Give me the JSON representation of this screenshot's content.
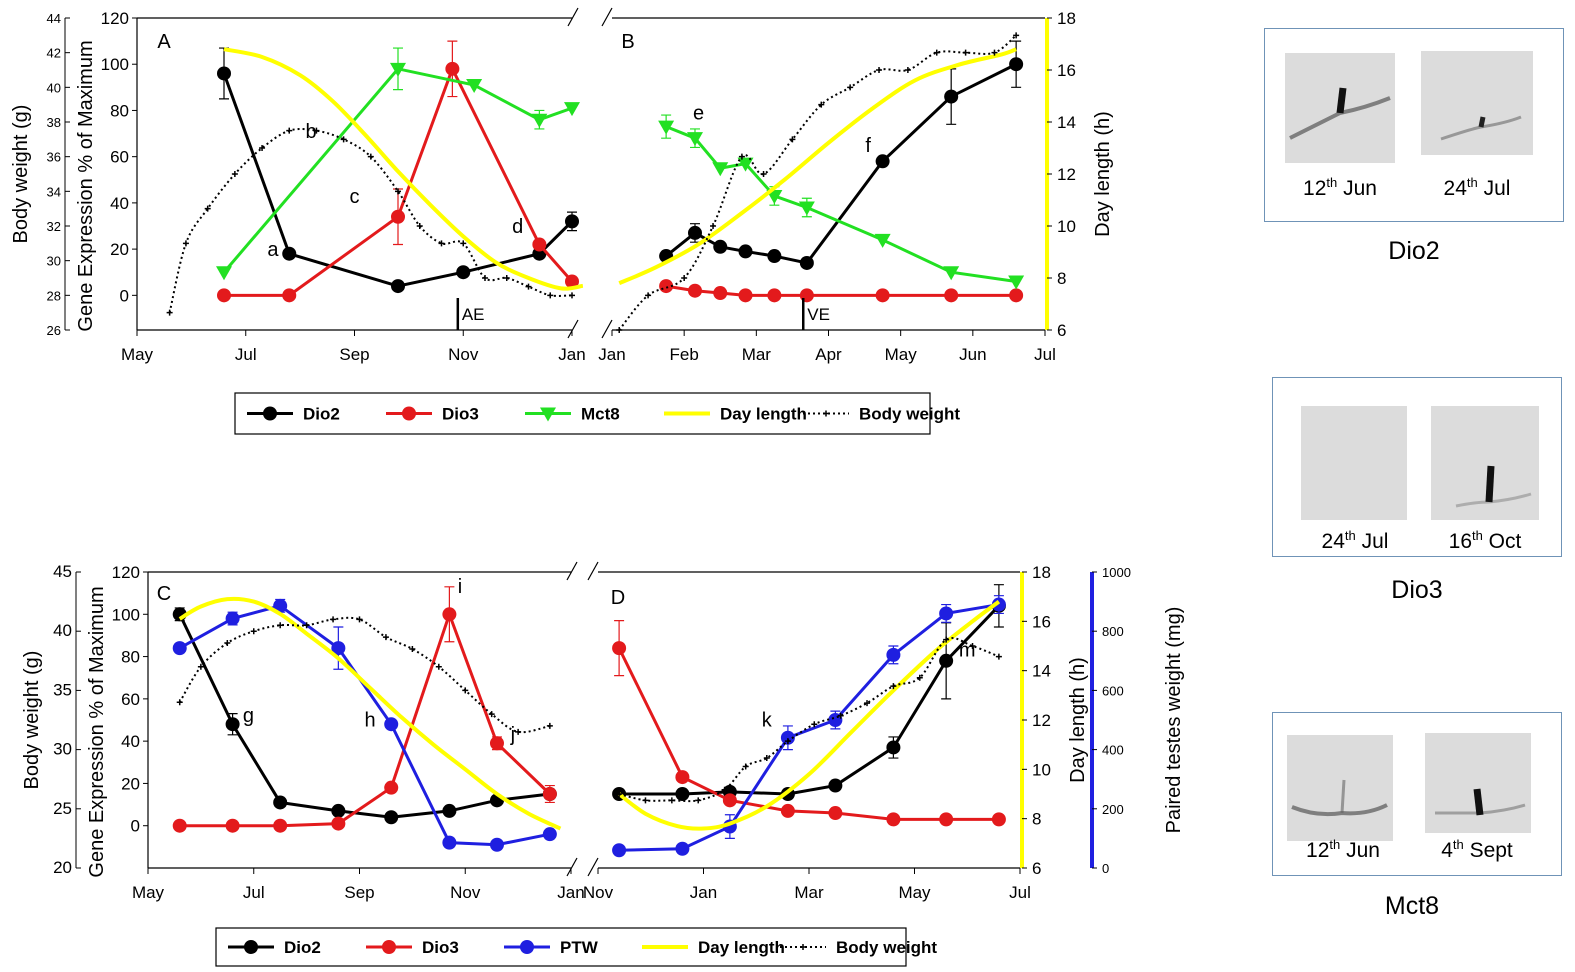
{
  "colors": {
    "dio2": "#000000",
    "dio3": "#e31a1c",
    "mct8": "#22e022",
    "ptw": "#1f1fe0",
    "day_length": "#ffff00",
    "body_weight": "#000000",
    "panel_border": "#6f93b7"
  },
  "legend_top": [
    {
      "key": "dio2",
      "label": "Dio2"
    },
    {
      "key": "dio3",
      "label": "Dio3"
    },
    {
      "key": "mct8",
      "label": "Mct8"
    },
    {
      "key": "day_length",
      "label": "Day length"
    },
    {
      "key": "body_weight",
      "label": "Body weight"
    }
  ],
  "legend_bottom": [
    {
      "key": "dio2",
      "label": "Dio2"
    },
    {
      "key": "dio3",
      "label": "Dio3"
    },
    {
      "key": "ptw",
      "label": "PTW"
    },
    {
      "key": "day_length",
      "label": "Day length"
    },
    {
      "key": "body_weight",
      "label": "Body weight"
    }
  ],
  "chart_data": [
    {
      "panel": "A",
      "type": "line",
      "x_unit": "month",
      "xlim": [
        5,
        13
      ],
      "x_ticks": [
        "May",
        "Jul",
        "Sep",
        "Nov",
        "Jan"
      ],
      "ylabel": "Gene Expression % of Maximum",
      "ylim": [
        -15,
        120
      ],
      "y_ticks": [
        0,
        20,
        40,
        60,
        80,
        100,
        120
      ],
      "y2label": "Body weight (g)",
      "y2lim": [
        26,
        44
      ],
      "y2_ticks": [
        26,
        28,
        30,
        32,
        34,
        36,
        38,
        40,
        42,
        44
      ],
      "series": [
        {
          "name": "Dio2",
          "x": [
            6.6,
            7.8,
            9.8,
            11.0,
            12.4,
            13.0
          ],
          "y": [
            96,
            18,
            4,
            10,
            18,
            32
          ],
          "err": [
            11,
            0,
            0,
            0,
            0,
            4
          ]
        },
        {
          "name": "Dio3",
          "x": [
            6.6,
            7.8,
            9.8,
            10.8,
            12.4,
            13.0
          ],
          "y": [
            0,
            0,
            34,
            98,
            22,
            6
          ],
          "err": [
            0,
            0,
            12,
            12,
            0,
            0
          ]
        },
        {
          "name": "Mct8",
          "x": [
            6.6,
            9.8,
            11.2,
            12.4,
            13.0
          ],
          "y": [
            10,
            98,
            91,
            76,
            81
          ],
          "err": [
            0,
            9,
            0,
            4,
            0
          ]
        },
        {
          "name": "Day length",
          "axis": "day_length",
          "x": [
            6.6,
            7.3,
            8.0,
            8.6,
            9.2,
            9.8,
            10.4,
            11.0,
            11.6,
            12.2,
            12.8,
            13.2
          ],
          "y": [
            16.8,
            16.5,
            15.8,
            14.8,
            13.5,
            12.1,
            10.8,
            9.6,
            8.6,
            8.0,
            7.6,
            7.7
          ]
        },
        {
          "name": "Body weight",
          "axis": "body_weight",
          "x": [
            5.6,
            5.9,
            6.3,
            6.8,
            7.3,
            7.8,
            8.3,
            8.8,
            9.3,
            9.8,
            10.2,
            10.6,
            11.0,
            11.4,
            11.8,
            12.2,
            12.6,
            13.0
          ],
          "y": [
            27,
            31,
            33,
            35,
            36.5,
            37.5,
            37.5,
            37,
            36,
            34,
            32,
            31,
            31,
            29,
            29,
            28.5,
            28,
            28
          ]
        }
      ],
      "annotations": [
        {
          "text": "a",
          "x": 7.5,
          "y": 17
        },
        {
          "text": "b",
          "x": 8.2,
          "y": 68
        },
        {
          "text": "c",
          "x": 9.0,
          "y": 40
        },
        {
          "text": "d",
          "x": 12.0,
          "y": 27
        }
      ],
      "marker": {
        "label": "AE",
        "x": 10.9
      }
    },
    {
      "panel": "B",
      "type": "line",
      "x_unit": "month",
      "xlim": [
        1,
        7
      ],
      "x_ticks": [
        "Jan",
        "Feb",
        "Mar",
        "Apr",
        "May",
        "Jun",
        "Jul"
      ],
      "ylim": [
        -15,
        120
      ],
      "y2label": "Day length (h)",
      "y2lim": [
        6,
        18
      ],
      "y2_ticks": [
        6,
        8,
        10,
        12,
        14,
        16,
        18
      ],
      "series": [
        {
          "name": "Dio2",
          "x": [
            1.75,
            2.15,
            2.5,
            2.85,
            3.25,
            3.7,
            4.75,
            5.7,
            6.6
          ],
          "y": [
            17,
            27,
            21,
            19,
            17,
            14,
            58,
            86,
            100
          ],
          "err": [
            0,
            4,
            0,
            0,
            0,
            0,
            0,
            12,
            10
          ]
        },
        {
          "name": "Dio3",
          "x": [
            1.75,
            2.15,
            2.5,
            2.85,
            3.25,
            3.7,
            4.75,
            5.7,
            6.6
          ],
          "y": [
            4,
            2,
            1,
            0,
            0,
            0,
            0,
            0,
            0
          ],
          "err": [
            0,
            0,
            0,
            0,
            0,
            0,
            0,
            0,
            0
          ]
        },
        {
          "name": "Mct8",
          "x": [
            1.75,
            2.15,
            2.5,
            2.85,
            3.25,
            3.7,
            4.75,
            5.7,
            6.6
          ],
          "y": [
            73,
            68,
            55,
            57,
            43,
            38,
            24,
            10,
            6
          ],
          "err": [
            5,
            4,
            0,
            0,
            4,
            4,
            0,
            0,
            0
          ]
        },
        {
          "name": "Day length",
          "axis": "day_length",
          "x": [
            1.1,
            1.6,
            2.2,
            2.8,
            3.4,
            4.0,
            4.6,
            5.2,
            5.8,
            6.4,
            6.6
          ],
          "y": [
            7.8,
            8.4,
            9.3,
            10.5,
            11.8,
            13.2,
            14.5,
            15.6,
            16.2,
            16.6,
            16.8
          ]
        },
        {
          "name": "Body weight",
          "axis": "body_weight",
          "x": [
            1.1,
            1.5,
            2.0,
            2.4,
            2.8,
            3.1,
            3.5,
            3.9,
            4.3,
            4.7,
            5.1,
            5.5,
            5.9,
            6.3,
            6.6
          ],
          "y": [
            26,
            28,
            29,
            32,
            36,
            35,
            37,
            39,
            40,
            41,
            41,
            42,
            42,
            42,
            43
          ]
        }
      ],
      "annotations": [
        {
          "text": "e",
          "x": 2.2,
          "y": 76
        },
        {
          "text": "f",
          "x": 4.55,
          "y": 62
        }
      ],
      "marker": {
        "label": "VE",
        "x": 3.65
      }
    },
    {
      "panel": "C",
      "type": "line",
      "x_unit": "month",
      "xlim": [
        5,
        13
      ],
      "x_ticks": [
        "May",
        "Jul",
        "Sep",
        "Nov",
        "Jan"
      ],
      "ylabel": "Gene Expression % of Maximum",
      "ylim": [
        -20,
        120
      ],
      "y_ticks": [
        0,
        20,
        40,
        60,
        80,
        100,
        120
      ],
      "y2label": "Body weight (g)",
      "y2lim": [
        20,
        45
      ],
      "y2_ticks": [
        20,
        25,
        30,
        35,
        40,
        45
      ],
      "series": [
        {
          "name": "Dio2",
          "x": [
            5.6,
            6.6,
            7.5,
            8.6,
            9.6,
            10.7,
            11.6,
            12.6
          ],
          "y": [
            100,
            48,
            11,
            7,
            4,
            7,
            12,
            15
          ],
          "err": [
            3,
            5,
            0,
            0,
            0,
            0,
            0,
            0
          ]
        },
        {
          "name": "Dio3",
          "x": [
            5.6,
            6.6,
            7.5,
            8.6,
            9.6,
            10.7,
            11.6,
            12.6
          ],
          "y": [
            0,
            0,
            0,
            1,
            18,
            100,
            39,
            15
          ],
          "err": [
            0,
            0,
            0,
            0,
            0,
            13,
            3,
            4
          ]
        },
        {
          "name": "PTW",
          "x": [
            5.6,
            6.6,
            7.5,
            8.6,
            9.6,
            10.7,
            11.6,
            12.6
          ],
          "y": [
            84,
            98,
            104,
            84,
            48,
            -8,
            -9,
            -4
          ],
          "err": [
            0,
            3,
            3,
            10,
            0,
            0,
            0,
            0
          ]
        },
        {
          "name": "Day length",
          "axis": "day_length",
          "x": [
            5.6,
            6.0,
            6.5,
            7.0,
            7.5,
            8.0,
            8.6,
            9.2,
            9.8,
            10.4,
            11.0,
            11.6,
            12.2,
            12.8
          ],
          "y": [
            16.1,
            16.6,
            16.9,
            16.8,
            16.3,
            15.5,
            14.5,
            13.3,
            12.1,
            11.0,
            10.0,
            9.0,
            8.2,
            7.6
          ]
        },
        {
          "name": "Body weight",
          "axis": "body_weight",
          "x": [
            5.6,
            6.0,
            6.5,
            7.0,
            7.5,
            8.0,
            8.5,
            9.0,
            9.5,
            10.0,
            10.5,
            11.0,
            11.5,
            12.0,
            12.6
          ],
          "y": [
            34,
            37,
            39,
            40,
            40.5,
            40.5,
            41,
            41,
            39.5,
            38.5,
            37,
            35,
            33,
            31.5,
            32
          ]
        }
      ],
      "annotations": [
        {
          "text": "g",
          "x": 6.9,
          "y": 49
        },
        {
          "text": "h",
          "x": 9.2,
          "y": 47
        },
        {
          "text": "i",
          "x": 10.9,
          "y": 110
        },
        {
          "text": "j",
          "x": 11.9,
          "y": 40
        }
      ]
    },
    {
      "panel": "D",
      "type": "line",
      "x_unit": "month",
      "xlim": [
        11,
        19
      ],
      "x_ticks": [
        "Nov",
        "Jan",
        "Mar",
        "May",
        "Jul"
      ],
      "ylim": [
        -20,
        120
      ],
      "y2label": "Day length (h)",
      "y2lim": [
        6,
        18
      ],
      "y2_ticks": [
        6,
        8,
        10,
        12,
        14,
        16,
        18
      ],
      "y3label": "Paired testes weight (mg)",
      "y3lim": [
        0,
        1000
      ],
      "y3_ticks": [
        0,
        200,
        400,
        600,
        800,
        1000
      ],
      "series": [
        {
          "name": "Dio2",
          "x": [
            11.4,
            12.6,
            13.5,
            14.6,
            15.5,
            16.6,
            17.6,
            18.6
          ],
          "y": [
            15,
            15,
            16,
            15,
            19,
            37,
            78,
            104
          ],
          "err": [
            0,
            0,
            0,
            0,
            0,
            5,
            18,
            10
          ]
        },
        {
          "name": "Dio3",
          "x": [
            11.4,
            12.6,
            13.5,
            14.6,
            15.5,
            16.6,
            17.6,
            18.6
          ],
          "y": [
            84,
            23,
            12,
            7,
            6,
            3,
            3,
            3
          ],
          "err": [
            13,
            0,
            0,
            0,
            0,
            0,
            0,
            0
          ]
        },
        {
          "name": "PTW",
          "axis": "testes_weight",
          "x": [
            11.4,
            12.6,
            13.5,
            14.6,
            15.5,
            16.6,
            17.6,
            18.6
          ],
          "y": [
            60,
            65,
            140,
            440,
            500,
            720,
            860,
            890
          ],
          "err": [
            0,
            0,
            40,
            40,
            30,
            30,
            30,
            30
          ]
        },
        {
          "name": "Day length",
          "axis": "day_length",
          "x": [
            11.4,
            11.9,
            12.5,
            13.0,
            13.5,
            14.2,
            15.0,
            15.8,
            16.6,
            17.4,
            18.1,
            18.6
          ],
          "y": [
            9.0,
            8.2,
            7.7,
            7.6,
            7.8,
            8.5,
            9.8,
            11.5,
            13.2,
            14.8,
            16.0,
            16.8
          ]
        },
        {
          "name": "Body weight",
          "axis": "body_weight_d",
          "x": [
            11.4,
            11.9,
            12.4,
            12.9,
            13.4,
            13.8,
            14.2,
            14.6,
            15.1,
            15.6,
            16.1,
            16.6,
            17.1,
            17.6,
            18.1,
            18.6
          ],
          "y": [
            15,
            12,
            12,
            12,
            17,
            28,
            32,
            40,
            48,
            52,
            58,
            66,
            70,
            88,
            85,
            80
          ]
        }
      ],
      "annotations": [
        {
          "text": "k",
          "x": 14.2,
          "y": 47
        },
        {
          "text": "m",
          "x": 18.0,
          "y": 80
        }
      ]
    }
  ],
  "panel_labels": [
    "A",
    "B",
    "C",
    "D"
  ],
  "blots": [
    {
      "gene": "Dio2",
      "left_label_day": "12",
      "left_label_sup": "th",
      "left_label_month": " Jun",
      "right_label_day": "24",
      "right_label_sup": "th",
      "right_label_month": " Jul"
    },
    {
      "gene": "Dio3",
      "left_label_day": "24",
      "left_label_sup": "th",
      "left_label_month": " Jul",
      "right_label_day": "16",
      "right_label_sup": "th",
      "right_label_month": " Oct"
    },
    {
      "gene": "Mct8",
      "left_label_day": "12",
      "left_label_sup": "th",
      "left_label_month": " Jun",
      "right_label_day": "4",
      "right_label_sup": "th",
      "right_label_month": " Sept"
    }
  ]
}
